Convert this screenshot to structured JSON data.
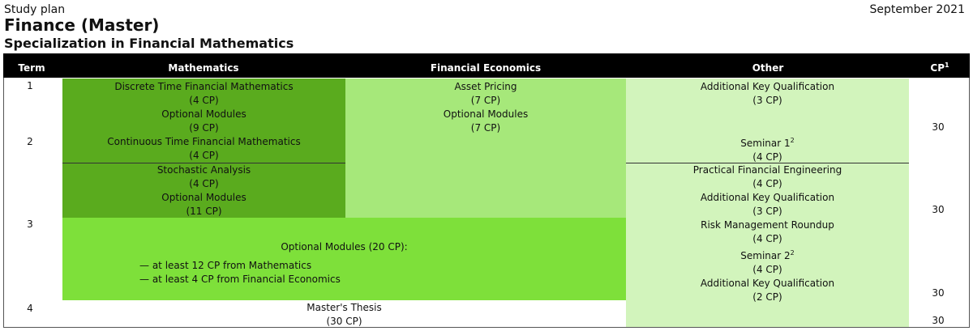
{
  "doc": {
    "label": "Study plan",
    "date": "September 2021",
    "title": "Finance (Master)",
    "subtitle": "Specialization in Financial Mathematics"
  },
  "columns": {
    "term": "Term",
    "math": "Mathematics",
    "fin": "Financial Economics",
    "other": "Other",
    "cp": "CP",
    "cp_footnote": "1"
  },
  "terms": [
    "1",
    "2",
    "3",
    "4"
  ],
  "cp_totals": [
    "30",
    "30",
    "30",
    "30"
  ],
  "colors": {
    "dark_green": "#5aab1e",
    "mid_green": "#a6e87a",
    "bright_green": "#7ee03a",
    "light_green": "#d2f4bc",
    "header": "#000000"
  },
  "math_block_1": {
    "lines": [
      "Discrete Time Financial Mathematics",
      "(4 CP)",
      "Optional Modules",
      "(9 CP)",
      "Continuous Time Financial Mathematics",
      "(4 CP)"
    ]
  },
  "math_block_2": {
    "lines": [
      "Stochastic Analysis",
      "(4 CP)",
      "Optional Modules",
      "(11 CP)"
    ]
  },
  "fin_block": {
    "lines": [
      "Asset Pricing",
      "(7 CP)",
      "Optional Modules",
      "(7 CP)"
    ]
  },
  "other_block_1": {
    "lines": [
      "Additional Key Qualification",
      "(3 CP)"
    ],
    "seminar": "Seminar 1",
    "seminar_footnote": "2",
    "seminar_cp": "(4 CP)"
  },
  "other_block_2": {
    "lines_a": [
      "Practical Financial Engineering",
      "(4 CP)",
      "Additional Key Qualification",
      "(3 CP)",
      "Risk Management Roundup",
      "(4 CP)"
    ],
    "seminar": "Seminar 2",
    "seminar_footnote": "2",
    "seminar_cp": "(4 CP)",
    "lines_b": [
      "Additional Key Qualification",
      "(2 CP)"
    ]
  },
  "optional_block": {
    "heading": "Optional Modules (20 CP):",
    "items": [
      "— at least 12 CP from Mathematics",
      "— at least 4 CP from Financial Economics"
    ]
  },
  "thesis": {
    "title": "Master's Thesis",
    "cp": "(30 CP)"
  }
}
